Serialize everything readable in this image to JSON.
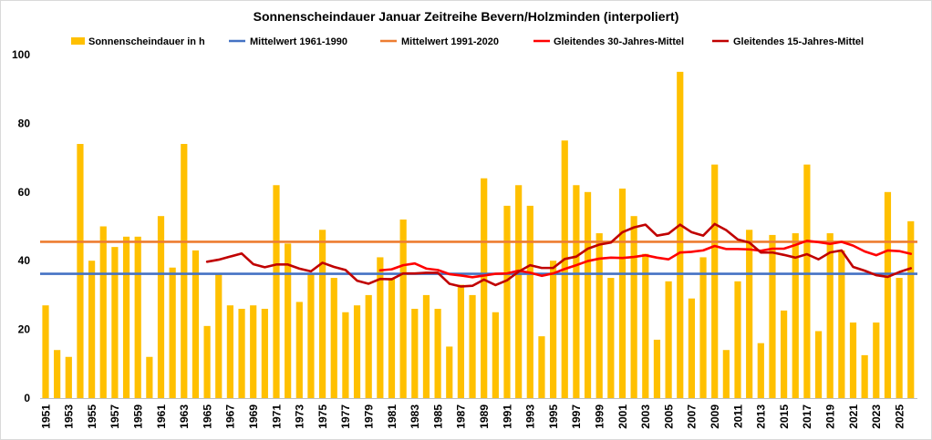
{
  "chart_data": {
    "type": "bar",
    "title": "Sonnenscheindauer Januar Zeitreihe Bevern/Holzminden (interpoliert)",
    "legend_position": "top",
    "grid": false,
    "ylim": [
      0,
      100
    ],
    "y_ticks": [
      0,
      20,
      40,
      60,
      80,
      100
    ],
    "y_tick_labels": [
      "0",
      "20",
      "40",
      "60",
      "80",
      "100"
    ],
    "x": [
      1951,
      1952,
      1953,
      1954,
      1955,
      1956,
      1957,
      1958,
      1959,
      1960,
      1961,
      1962,
      1963,
      1964,
      1965,
      1966,
      1967,
      1968,
      1969,
      1970,
      1971,
      1972,
      1973,
      1974,
      1975,
      1976,
      1977,
      1978,
      1979,
      1980,
      1981,
      1982,
      1983,
      1984,
      1985,
      1986,
      1987,
      1988,
      1989,
      1990,
      1991,
      1992,
      1993,
      1994,
      1995,
      1996,
      1997,
      1998,
      1999,
      2000,
      2001,
      2002,
      2003,
      2004,
      2005,
      2006,
      2007,
      2008,
      2009,
      2010,
      2011,
      2012,
      2013,
      2014,
      2015,
      2016,
      2017,
      2018,
      2019,
      2020,
      2021,
      2022,
      2023,
      2024,
      2025,
      2026
    ],
    "x_tick_labels": [
      "1951",
      "1953",
      "1955",
      "1957",
      "1959",
      "1961",
      "1963",
      "1965",
      "1967",
      "1969",
      "1971",
      "1973",
      "1975",
      "1977",
      "1979",
      "1981",
      "1983",
      "1985",
      "1987",
      "1989",
      "1991",
      "1993",
      "1995",
      "1997",
      "1999",
      "2001",
      "2003",
      "2005",
      "2007",
      "2009",
      "2011",
      "2013",
      "2015",
      "2017",
      "2019",
      "2021",
      "2023",
      "2025"
    ],
    "series": [
      {
        "name": "Sonnenscheindauer in h",
        "type": "bar",
        "color": "#FFC000",
        "values": [
          27,
          14,
          12,
          74,
          40,
          50,
          44,
          47,
          47,
          12,
          53,
          38,
          74,
          43,
          21,
          36,
          27,
          26,
          27,
          26,
          62,
          45,
          28,
          36,
          49,
          35,
          25,
          27,
          30,
          41,
          35,
          52,
          26,
          30,
          26,
          15,
          33,
          30,
          64,
          25,
          56,
          62,
          56,
          18,
          40,
          75,
          62,
          60,
          48,
          35,
          61,
          53,
          42,
          17,
          34,
          95,
          29,
          41,
          68,
          14,
          34,
          49,
          16,
          47.5,
          25.5,
          48,
          68,
          19.5,
          48,
          43,
          22,
          12.5,
          22,
          60,
          35,
          51.5
        ]
      },
      {
        "name": "Mittelwert 1961-1990",
        "type": "line",
        "color": "#4472C4",
        "value": 36.2
      },
      {
        "name": "Mittelwert 1991-2020",
        "type": "line",
        "color": "#ED7D31",
        "value": 45.5
      },
      {
        "name": "Gleitendes 30-Jahres-Mittel",
        "type": "line",
        "color": "#FF0000",
        "values": [
          null,
          null,
          null,
          null,
          null,
          null,
          null,
          null,
          null,
          null,
          null,
          null,
          null,
          null,
          null,
          null,
          null,
          null,
          null,
          null,
          null,
          null,
          null,
          null,
          null,
          null,
          null,
          null,
          null,
          37.2,
          37.5,
          38.7,
          39.2,
          37.7,
          37.3,
          36.1,
          35.7,
          35.2,
          35.7,
          36.2,
          36.3,
          37.1,
          36.5,
          35.6,
          36.3,
          37.6,
          38.7,
          39.9,
          40.6,
          40.9,
          40.8,
          41.1,
          41.6,
          40.9,
          40.4,
          42.4,
          42.6,
          43.0,
          44.3,
          43.4,
          43.4,
          43.3,
          42.9,
          43.5,
          43.5,
          44.6,
          45.8,
          45.4,
          44.9,
          45.5,
          44.4,
          42.7,
          41.6,
          43.0,
          42.8,
          42.0
        ]
      },
      {
        "name": "Gleitendes 15-Jahres-Mittel",
        "type": "line",
        "color": "#C00000",
        "values": [
          null,
          null,
          null,
          null,
          null,
          null,
          null,
          null,
          null,
          null,
          null,
          null,
          null,
          null,
          39.7,
          40.3,
          41.2,
          42.1,
          39.0,
          38.1,
          38.9,
          38.9,
          37.7,
          36.9,
          39.4,
          38.2,
          37.3,
          34.2,
          33.3,
          34.7,
          34.6,
          36.3,
          36.3,
          36.5,
          36.5,
          33.3,
          32.5,
          32.7,
          34.5,
          32.9,
          34.3,
          36.8,
          38.7,
          37.9,
          37.9,
          40.5,
          41.2,
          43.5,
          44.7,
          45.3,
          48.3,
          49.7,
          50.5,
          47.3,
          47.9,
          50.5,
          48.3,
          47.3,
          50.7,
          48.9,
          46.2,
          45.3,
          42.4,
          42.4,
          41.7,
          40.9,
          41.9,
          40.4,
          42.4,
          43.0,
          38.2,
          37.1,
          35.8,
          35.3,
          36.7,
          37.8
        ]
      }
    ]
  }
}
